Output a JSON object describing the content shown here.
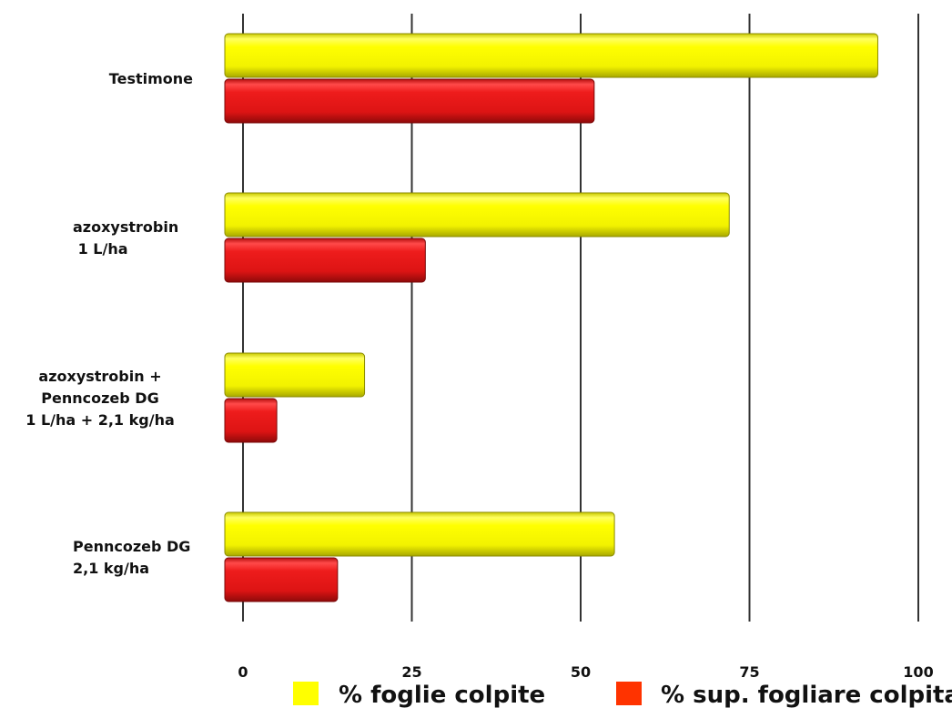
{
  "chart_data": {
    "type": "bar",
    "orientation": "horizontal",
    "categories": [
      [
        "Testimone"
      ],
      [
        "azoxystrobin",
        " 1 L/ha"
      ],
      [
        "azoxystrobin +",
        "Penncozeb DG",
        "1 L/ha + 2,1 kg/ha"
      ],
      [
        "Penncozeb DG",
        "2,1 kg/ha"
      ]
    ],
    "series": [
      {
        "name": "% foglie colpite",
        "color": "#ffff00",
        "values": [
          94,
          72,
          18,
          55
        ]
      },
      {
        "name": "% sup. fogliare colpita",
        "color": "#ee1c1c",
        "values": [
          52,
          27,
          5,
          14
        ]
      }
    ],
    "xlim": [
      0,
      100
    ],
    "xticks": [
      "0",
      "25",
      "50",
      "75",
      "100"
    ],
    "grid": true,
    "legend": "bottom"
  }
}
